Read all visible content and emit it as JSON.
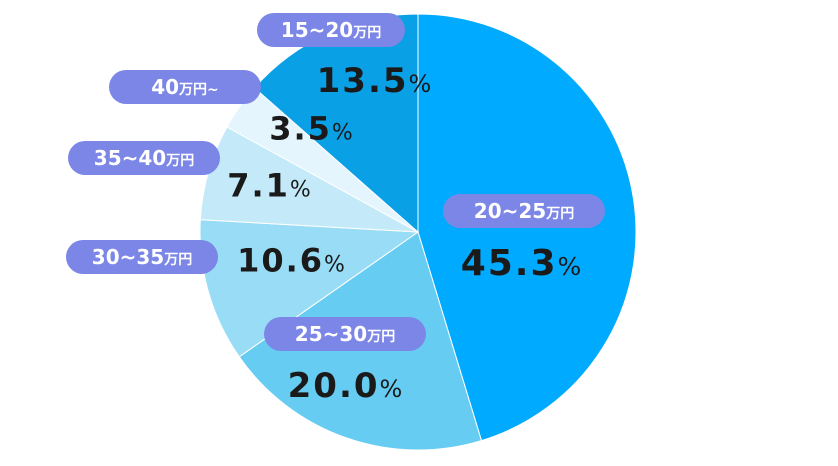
{
  "chart_data": {
    "type": "pie",
    "slices": [
      {
        "range": "20~25",
        "unit": "万円",
        "value": 45.3,
        "value_label": "45.3",
        "color": "#00aaff"
      },
      {
        "range": "25~30",
        "unit": "万円",
        "value": 20.0,
        "value_label": "20.0",
        "color": "#66ccf2"
      },
      {
        "range": "30~35",
        "unit": "万円",
        "value": 10.6,
        "value_label": "10.6",
        "color": "#99dcf6"
      },
      {
        "range": "35~40",
        "unit": "万円",
        "value": 7.1,
        "value_label": "7.1",
        "color": "#c4eafa"
      },
      {
        "range": "40",
        "unit": "万円~",
        "value": 3.5,
        "value_label": "3.5",
        "color": "#e4f5fd"
      },
      {
        "range": "15~20",
        "unit": "万円",
        "value": 13.5,
        "value_label": "13.5",
        "color": "#0aa0e6"
      }
    ],
    "percent_symbol": "%",
    "label_bg_color": "#7b86e6"
  }
}
